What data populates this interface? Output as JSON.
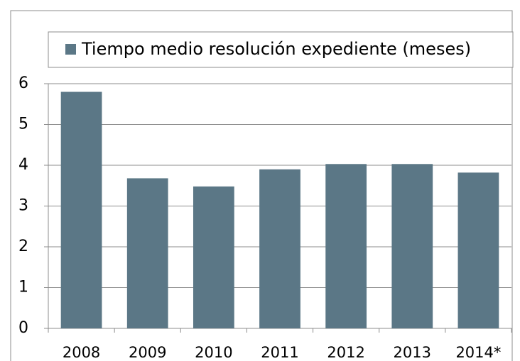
{
  "chart_data": {
    "type": "bar",
    "legend": "Tiempo medio resolución expediente (meses)",
    "categories": [
      "2008",
      "2009",
      "2010",
      "2011",
      "2012",
      "2013",
      "2014*"
    ],
    "values": [
      5.8,
      3.68,
      3.48,
      3.9,
      4.03,
      4.03,
      3.82
    ],
    "color": "#5b7786",
    "ylim": [
      0,
      6
    ],
    "yticks": [
      0,
      1,
      2,
      3,
      4,
      5,
      6
    ],
    "grid": true
  }
}
